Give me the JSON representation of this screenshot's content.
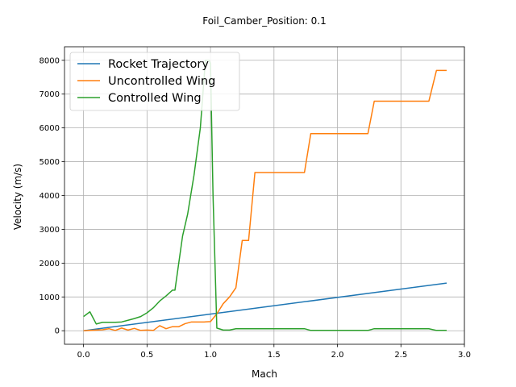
{
  "chart_data": {
    "type": "line",
    "title": "Foil_Camber_Position: 0.1",
    "xlabel": "Mach",
    "ylabel": "Velocity (m/s)",
    "xlim": [
      -0.15,
      3.0
    ],
    "ylim": [
      -400,
      8400
    ],
    "xticks": [
      "0.0",
      "0.5",
      "1.0",
      "1.5",
      "2.0",
      "2.5",
      "3.0"
    ],
    "yticks": [
      "0",
      "1000",
      "2000",
      "3000",
      "4000",
      "5000",
      "6000",
      "7000",
      "8000"
    ],
    "grid": true,
    "legend_position": "top-left",
    "series": [
      {
        "name": "Rocket Trajectory",
        "color": "#1f77b4",
        "x": [
          0.0,
          2.86
        ],
        "y": [
          0,
          1410
        ]
      },
      {
        "name": "Uncontrolled Wing",
        "color": "#ff7f0e",
        "x": [
          0.0,
          0.05,
          0.1,
          0.15,
          0.2,
          0.25,
          0.3,
          0.35,
          0.4,
          0.45,
          0.5,
          0.55,
          0.6,
          0.65,
          0.7,
          0.75,
          0.8,
          0.85,
          0.9,
          0.95,
          1.0,
          1.05,
          1.1,
          1.15,
          1.2,
          1.25,
          1.3,
          1.35,
          1.38,
          1.5,
          1.74,
          1.79,
          2.0,
          2.24,
          2.29,
          2.5,
          2.72,
          2.78,
          2.86
        ],
        "y": [
          0,
          10,
          20,
          30,
          60,
          10,
          80,
          20,
          70,
          10,
          20,
          10,
          150,
          60,
          120,
          120,
          210,
          260,
          260,
          260,
          270,
          500,
          800,
          1000,
          1270,
          2670,
          2670,
          4680,
          4680,
          4680,
          4680,
          5830,
          5830,
          5830,
          6790,
          6790,
          6790,
          7700,
          7700
        ]
      },
      {
        "name": "Controlled Wing",
        "color": "#2ca02c",
        "x": [
          0.0,
          0.05,
          0.1,
          0.15,
          0.2,
          0.25,
          0.3,
          0.35,
          0.4,
          0.45,
          0.5,
          0.55,
          0.6,
          0.65,
          0.7,
          0.72,
          0.78,
          0.82,
          0.87,
          0.92,
          0.96,
          0.99,
          1.0,
          1.02,
          1.05,
          1.1,
          1.15,
          1.2,
          1.5,
          1.74,
          1.79,
          2.0,
          2.24,
          2.29,
          2.5,
          2.72,
          2.78,
          2.86
        ],
        "y": [
          420,
          560,
          200,
          250,
          250,
          250,
          260,
          310,
          360,
          420,
          530,
          680,
          880,
          1030,
          1200,
          1200,
          2800,
          3450,
          4600,
          6000,
          8000,
          8000,
          7900,
          4000,
          80,
          20,
          20,
          60,
          60,
          60,
          10,
          10,
          10,
          60,
          60,
          60,
          10,
          10
        ]
      }
    ]
  }
}
